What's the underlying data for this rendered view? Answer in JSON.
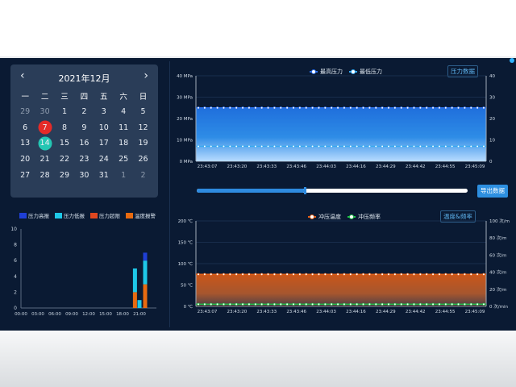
{
  "calendar": {
    "title": "2021年12月",
    "prev_icon": "‹",
    "next_icon": "›",
    "weekdays": [
      "一",
      "二",
      "三",
      "四",
      "五",
      "六",
      "日"
    ],
    "days": [
      [
        "29",
        "30",
        "1",
        "2",
        "3",
        "4",
        "5"
      ],
      [
        "6",
        "7",
        "8",
        "9",
        "10",
        "11",
        "12"
      ],
      [
        "13",
        "14",
        "15",
        "16",
        "17",
        "18",
        "19"
      ],
      [
        "20",
        "21",
        "22",
        "23",
        "24",
        "25",
        "26"
      ],
      [
        "27",
        "28",
        "29",
        "30",
        "31",
        "1",
        "2"
      ]
    ],
    "muted": [
      [
        0,
        0
      ],
      [
        0,
        1
      ],
      [
        4,
        5
      ],
      [
        4,
        6
      ]
    ],
    "selected_red": [
      1,
      1
    ],
    "selected_teal": [
      2,
      1
    ]
  },
  "alarm_chart": {
    "legend": [
      {
        "label": "压力高报",
        "color": "#1f3fd6"
      },
      {
        "label": "压力低报",
        "color": "#1ec8e8"
      },
      {
        "label": "压力超限",
        "color": "#e0471f"
      },
      {
        "label": "温度报警",
        "color": "#e86a10"
      }
    ]
  },
  "pressure_panel": {
    "title": "压力数据",
    "legend": [
      {
        "label": "最高压力",
        "color": "#2d6fe8"
      },
      {
        "label": "最低压力",
        "color": "#36a8f0"
      }
    ],
    "export_label": "导出数据",
    "slider_value": 0.4
  },
  "temp_panel": {
    "title": "温度&频率",
    "legend": [
      {
        "label": "冲压温度",
        "color": "#e0601a"
      },
      {
        "label": "冲压频率",
        "color": "#23c24a"
      }
    ]
  },
  "chart_data": [
    {
      "type": "bar",
      "stacked": true,
      "categories": [
        "00:00",
        "03:00",
        "06:00",
        "09:00",
        "12:00",
        "15:00",
        "18:00",
        "21:00"
      ],
      "yticks": [
        "0",
        "2",
        "4",
        "6",
        "8",
        "10"
      ],
      "ylim": [
        0,
        10
      ],
      "bars": [
        {
          "x": 20.2,
          "segments": [
            2,
            3
          ]
        },
        {
          "x": 21.0,
          "segments": [
            0,
            1
          ]
        },
        {
          "x": 22.0,
          "segments": [
            3,
            3,
            1
          ]
        }
      ],
      "segment_colors": [
        "#e86a10",
        "#1ec8e8",
        "#1f3fd6"
      ]
    },
    {
      "type": "area",
      "x": [
        "23:43:07",
        "23:43:20",
        "23:43:33",
        "23:43:46",
        "23:44:03",
        "23:44:16",
        "23:44:29",
        "23:44:42",
        "23:44:55",
        "23:45:09"
      ],
      "yticks_left": [
        "0 MPa",
        "10 MPa",
        "20 MPa",
        "30 MPa",
        "40 MPa"
      ],
      "yticks_right": [
        "0",
        "10",
        "20",
        "30",
        "40"
      ],
      "ylim": [
        0,
        40
      ],
      "series": [
        {
          "name": "最高压力",
          "value": 25,
          "color": "#2d6fe8"
        },
        {
          "name": "最低压力",
          "value": 7,
          "color": "#36a8f0"
        }
      ]
    },
    {
      "type": "area",
      "x": [
        "23:43:07",
        "23:43:20",
        "23:43:33",
        "23:43:46",
        "23:44:03",
        "23:44:16",
        "23:44:29",
        "23:44:42",
        "23:44:55",
        "23:45:09"
      ],
      "yticks_left": [
        "0 ℃",
        "50 ℃",
        "100 ℃",
        "150 ℃",
        "200 ℃"
      ],
      "yticks_right": [
        "0 次/min",
        "20 次/m",
        "40 次/m",
        "60 次/m",
        "80 次/m",
        "100 次/m"
      ],
      "ylim_left": [
        0,
        200
      ],
      "series": [
        {
          "name": "冲压温度",
          "value": 75,
          "color": "#e0601a"
        },
        {
          "name": "冲压频率",
          "value": 5,
          "color": "#23c24a"
        }
      ]
    }
  ]
}
